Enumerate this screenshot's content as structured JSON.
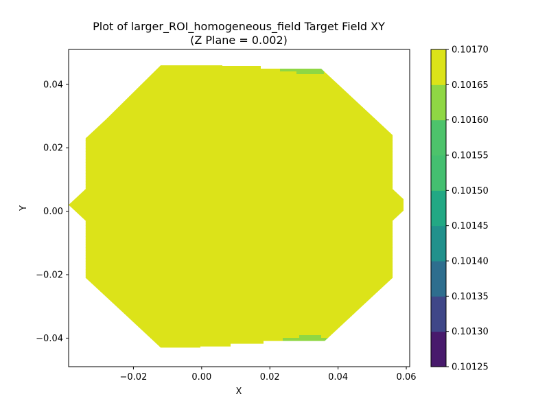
{
  "chart_data": {
    "type": "contour",
    "title_line1": "Plot of larger_ROI_homogeneous_field Target Field XY",
    "title_line2": "(Z Plane = 0.002)",
    "xlabel": "X",
    "ylabel": "Y",
    "xlim": [
      -0.039,
      0.061
    ],
    "ylim": [
      -0.049,
      0.051
    ],
    "x_ticks": [
      -0.02,
      0.0,
      0.02,
      0.04,
      0.06
    ],
    "x_tick_labels": [
      "−0.02",
      "0.00",
      "0.02",
      "0.04",
      "0.06"
    ],
    "y_ticks": [
      -0.04,
      -0.02,
      0.0,
      0.02,
      0.04
    ],
    "y_tick_labels": [
      "−0.04",
      "−0.02",
      "0.00",
      "0.02",
      "0.04"
    ],
    "levels": [
      0.10125,
      0.1013,
      0.10135,
      0.1014,
      0.10145,
      0.1015,
      0.10155,
      0.1016,
      0.10165,
      0.1017
    ],
    "level_labels": [
      "0.10125",
      "0.10130",
      "0.10135",
      "0.10140",
      "0.10145",
      "0.10150",
      "0.10155",
      "0.10160",
      "0.10165",
      "0.10170"
    ],
    "colormap": [
      "#440154",
      "#472d7b",
      "#3b528b",
      "#2c728e",
      "#21918c",
      "#28ae80",
      "#5ec962",
      "#addc30",
      "#fde725"
    ],
    "band_colors": [
      "#481a6c",
      "#3f4788",
      "#2e6e8e",
      "#21918c",
      "#22a884",
      "#44bf70",
      "#4dc36b",
      "#8fd744",
      "#dce319"
    ],
    "domain_outline": [
      [
        -0.039,
        0.002
      ],
      [
        -0.034,
        0.007
      ],
      [
        -0.034,
        0.023
      ],
      [
        -0.028,
        0.029
      ],
      [
        -0.012,
        0.046
      ],
      [
        0.006,
        0.046
      ],
      [
        0.011,
        0.051
      ],
      [
        0.016,
        0.046
      ],
      [
        0.034,
        0.046
      ],
      [
        0.051,
        0.029
      ],
      [
        0.056,
        0.024
      ],
      [
        0.056,
        0.007
      ],
      [
        0.061,
        0.002
      ],
      [
        0.056,
        -0.003
      ],
      [
        0.056,
        -0.021
      ],
      [
        0.046,
        -0.031
      ],
      [
        0.034,
        -0.043
      ],
      [
        0.016,
        -0.043
      ],
      [
        0.011,
        -0.048
      ],
      [
        0.006,
        -0.043
      ],
      [
        -0.012,
        -0.043
      ],
      [
        -0.024,
        -0.031
      ],
      [
        -0.034,
        -0.021
      ],
      [
        -0.034,
        -0.003
      ]
    ]
  }
}
